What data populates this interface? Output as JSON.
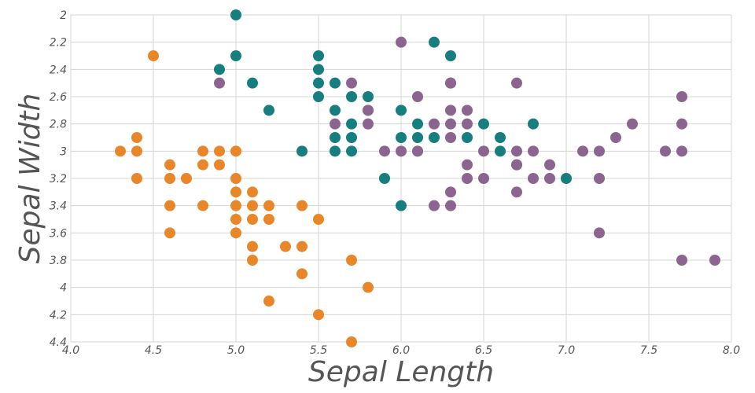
{
  "chart_data": {
    "type": "scatter",
    "xlabel": "Sepal Length",
    "ylabel": "Sepal Width",
    "xlim": [
      4.0,
      8.0
    ],
    "ylim": [
      2.0,
      4.4
    ],
    "y_axis_inverted": true,
    "grid": true,
    "legend": "none",
    "x_ticks": [
      "4.0",
      "4.5",
      "5.0",
      "5.5",
      "6.0",
      "6.5",
      "7.0",
      "7.5",
      "8.0"
    ],
    "y_ticks": [
      "2",
      "2.2",
      "2.4",
      "2.6",
      "2.8",
      "3",
      "3.2",
      "3.4",
      "3.6",
      "3.8",
      "4",
      "4.2",
      "4.4"
    ],
    "series": [
      {
        "color": "#E8872A",
        "points": [
          [
            4.5,
            2.3
          ],
          [
            4.3,
            3.0
          ],
          [
            4.4,
            2.9
          ],
          [
            4.4,
            3.0
          ],
          [
            4.4,
            3.2
          ],
          [
            4.6,
            3.1
          ],
          [
            4.6,
            3.2
          ],
          [
            4.6,
            3.4
          ],
          [
            4.6,
            3.6
          ],
          [
            4.7,
            3.2
          ],
          [
            4.8,
            3.0
          ],
          [
            4.8,
            3.1
          ],
          [
            4.8,
            3.4
          ],
          [
            4.9,
            3.0
          ],
          [
            4.9,
            3.1
          ],
          [
            5.0,
            3.0
          ],
          [
            5.0,
            3.2
          ],
          [
            5.0,
            3.3
          ],
          [
            5.0,
            3.4
          ],
          [
            5.0,
            3.5
          ],
          [
            5.0,
            3.6
          ],
          [
            5.1,
            3.3
          ],
          [
            5.1,
            3.4
          ],
          [
            5.1,
            3.5
          ],
          [
            5.1,
            3.7
          ],
          [
            5.1,
            3.8
          ],
          [
            5.2,
            3.4
          ],
          [
            5.2,
            3.5
          ],
          [
            5.2,
            4.1
          ],
          [
            5.3,
            3.7
          ],
          [
            5.4,
            3.4
          ],
          [
            5.4,
            3.7
          ],
          [
            5.4,
            3.9
          ],
          [
            5.5,
            3.5
          ],
          [
            5.5,
            4.2
          ],
          [
            5.7,
            3.8
          ],
          [
            5.7,
            4.4
          ],
          [
            5.8,
            4.0
          ]
        ]
      },
      {
        "color": "#167E7E",
        "points": [
          [
            5.0,
            2.0
          ],
          [
            5.0,
            2.3
          ],
          [
            4.9,
            2.4
          ],
          [
            5.1,
            2.5
          ],
          [
            5.2,
            2.7
          ],
          [
            5.4,
            3.0
          ],
          [
            5.5,
            2.3
          ],
          [
            5.5,
            2.4
          ],
          [
            5.5,
            2.5
          ],
          [
            5.5,
            2.6
          ],
          [
            5.6,
            2.5
          ],
          [
            5.6,
            2.7
          ],
          [
            5.6,
            2.9
          ],
          [
            5.6,
            3.0
          ],
          [
            5.7,
            2.6
          ],
          [
            5.7,
            2.8
          ],
          [
            5.7,
            2.9
          ],
          [
            5.7,
            3.0
          ],
          [
            5.8,
            2.6
          ],
          [
            5.8,
            2.7
          ],
          [
            5.9,
            3.2
          ],
          [
            6.0,
            2.7
          ],
          [
            6.0,
            2.9
          ],
          [
            6.0,
            3.4
          ],
          [
            6.1,
            2.8
          ],
          [
            6.1,
            2.9
          ],
          [
            6.1,
            3.0
          ],
          [
            6.2,
            2.2
          ],
          [
            6.2,
            2.9
          ],
          [
            6.3,
            2.3
          ],
          [
            6.3,
            2.5
          ],
          [
            6.4,
            2.9
          ],
          [
            6.5,
            2.8
          ],
          [
            6.6,
            2.9
          ],
          [
            6.6,
            3.0
          ],
          [
            6.7,
            3.1
          ],
          [
            6.8,
            2.8
          ],
          [
            7.0,
            3.2
          ]
        ]
      },
      {
        "color": "#8B6590",
        "points": [
          [
            4.9,
            2.5
          ],
          [
            5.6,
            2.8
          ],
          [
            5.7,
            2.5
          ],
          [
            5.8,
            2.7
          ],
          [
            5.8,
            2.8
          ],
          [
            5.9,
            3.0
          ],
          [
            6.0,
            2.2
          ],
          [
            6.0,
            3.0
          ],
          [
            6.1,
            2.6
          ],
          [
            6.1,
            3.0
          ],
          [
            6.2,
            2.8
          ],
          [
            6.2,
            3.4
          ],
          [
            6.3,
            2.5
          ],
          [
            6.3,
            2.7
          ],
          [
            6.3,
            2.8
          ],
          [
            6.3,
            2.9
          ],
          [
            6.3,
            3.3
          ],
          [
            6.3,
            3.4
          ],
          [
            6.4,
            2.7
          ],
          [
            6.4,
            2.8
          ],
          [
            6.4,
            3.1
          ],
          [
            6.4,
            3.2
          ],
          [
            6.5,
            3.0
          ],
          [
            6.5,
            3.2
          ],
          [
            6.7,
            2.5
          ],
          [
            6.7,
            3.0
          ],
          [
            6.7,
            3.1
          ],
          [
            6.7,
            3.3
          ],
          [
            6.8,
            3.0
          ],
          [
            6.8,
            3.2
          ],
          [
            6.9,
            3.1
          ],
          [
            6.9,
            3.2
          ],
          [
            7.1,
            3.0
          ],
          [
            7.2,
            3.0
          ],
          [
            7.2,
            3.2
          ],
          [
            7.2,
            3.6
          ],
          [
            7.3,
            2.9
          ],
          [
            7.4,
            2.8
          ],
          [
            7.6,
            3.0
          ],
          [
            7.7,
            2.6
          ],
          [
            7.7,
            2.8
          ],
          [
            7.7,
            3.0
          ],
          [
            7.7,
            3.8
          ],
          [
            7.9,
            3.8
          ]
        ]
      }
    ]
  }
}
